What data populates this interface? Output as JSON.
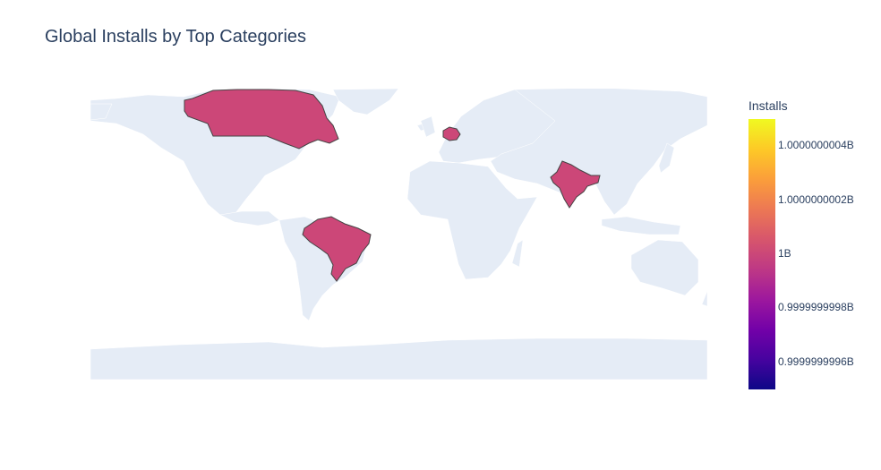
{
  "title": "Global Installs by Top Categories",
  "colorbar": {
    "title": "Installs",
    "ticks": [
      "1.0000000004B",
      "1.0000000002B",
      "1B",
      "0.9999999998B",
      "0.9999999996B"
    ]
  },
  "colors": {
    "land": "#e5ecf6",
    "highlight": "#cc4778",
    "border": "#444444",
    "title": "#2a3f5f"
  },
  "map": {
    "projection": "equirectangular",
    "highlighted_countries": [
      {
        "name": "Canada",
        "installs": 1000000000
      },
      {
        "name": "Germany",
        "installs": 1000000000
      },
      {
        "name": "India",
        "installs": 1000000000
      },
      {
        "name": "Brazil",
        "installs": 1000000000
      }
    ]
  }
}
